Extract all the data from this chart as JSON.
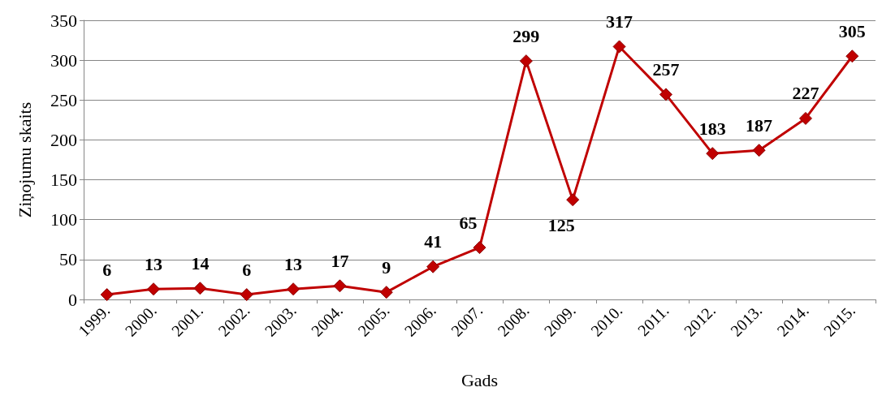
{
  "chart_data": {
    "type": "line",
    "xlabel": "Gads",
    "ylabel": "Ziņojumu skaits",
    "categories": [
      "1999.",
      "2000.",
      "2001.",
      "2002.",
      "2003.",
      "2004.",
      "2005.",
      "2006.",
      "2007.",
      "2008.",
      "2009.",
      "2010.",
      "2011.",
      "2012.",
      "2013.",
      "2014.",
      "2015."
    ],
    "series": [
      {
        "color": "#c00000",
        "values": [
          6,
          13,
          14,
          6,
          13,
          17,
          9,
          41,
          65,
          299,
          125,
          317,
          257,
          183,
          187,
          227,
          305
        ]
      }
    ],
    "ylim": [
      0,
      350
    ],
    "yticks": [
      0,
      50,
      100,
      150,
      200,
      250,
      300,
      350
    ],
    "grid": "y",
    "marker": "diamond",
    "line_style": "solid",
    "data_labels": true
  }
}
